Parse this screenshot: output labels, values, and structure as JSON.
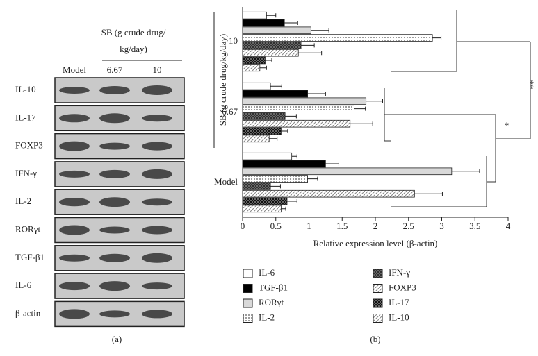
{
  "panel_a": {
    "header": [
      "SB (g crude drug/",
      "kg/day)"
    ],
    "lanes": [
      "Model",
      "6.67",
      "10"
    ],
    "rows": [
      "IL-10",
      "IL-17",
      "FOXP3",
      "IFN-γ",
      "IL-2",
      "RORγt",
      "TGF-β1",
      "IL-6",
      "β-actin"
    ],
    "caption": "(a)"
  },
  "chart_data": {
    "type": "bar",
    "orientation": "horizontal",
    "caption": "(b)",
    "xlabel": "Relative expression level (β-actin)",
    "ylabel": "SB (g crude drug/kg/day)",
    "categories": [
      "Model",
      "6.67",
      "10"
    ],
    "xlim": [
      0,
      4
    ],
    "xticks": [
      0,
      0.5,
      1,
      1.5,
      2,
      2.5,
      3,
      3.5,
      4
    ],
    "annotations": [
      "*",
      "**"
    ],
    "legend_columns": 2,
    "series": [
      {
        "name": "IL-6",
        "color": "#ffffff",
        "pattern": "solid",
        "values": [
          0.74,
          0.42,
          0.36
        ],
        "errors": [
          0.08,
          0.17,
          0.14
        ]
      },
      {
        "name": "TGF-β1",
        "color": "#000000",
        "pattern": "solid",
        "values": [
          1.25,
          0.98,
          0.63
        ],
        "errors": [
          0.2,
          0.27,
          0.2
        ]
      },
      {
        "name": "RORγt",
        "color": "#d9d9d9",
        "pattern": "solid",
        "values": [
          3.15,
          1.86,
          1.03
        ],
        "errors": [
          0.42,
          0.25,
          0.27
        ]
      },
      {
        "name": "IL-2",
        "color": "#555555",
        "pattern": "dots",
        "values": [
          0.98,
          1.68,
          2.86
        ],
        "errors": [
          0.15,
          0.17,
          0.13
        ]
      },
      {
        "name": "IFN-γ",
        "color": "#444444",
        "pattern": "crosshatch",
        "values": [
          0.42,
          0.64,
          0.88
        ],
        "errors": [
          0.15,
          0.17,
          0.2
        ]
      },
      {
        "name": "FOXP3",
        "color": "#888888",
        "pattern": "diagonal",
        "values": [
          2.59,
          1.62,
          0.84
        ],
        "errors": [
          0.42,
          0.34,
          0.35
        ]
      },
      {
        "name": "IL-17",
        "color": "#111111",
        "pattern": "checker",
        "values": [
          0.67,
          0.58,
          0.34
        ],
        "errors": [
          0.15,
          0.1,
          0.1
        ]
      },
      {
        "name": "IL-10",
        "color": "#777777",
        "pattern": "diagonal",
        "values": [
          0.58,
          0.4,
          0.26
        ],
        "errors": [
          0.07,
          0.12,
          0.1
        ]
      }
    ]
  }
}
